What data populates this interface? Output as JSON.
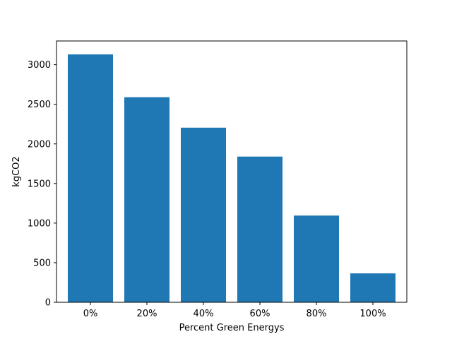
{
  "chart_data": {
    "type": "bar",
    "title": "",
    "xlabel": "Percent Green Energys",
    "ylabel": "kgCO2",
    "categories": [
      "0%",
      "20%",
      "40%",
      "60%",
      "80%",
      "100%"
    ],
    "values": [
      3130,
      2590,
      2205,
      1840,
      1095,
      365
    ],
    "ylim": [
      0,
      3300
    ],
    "yticks": [
      0,
      500,
      1000,
      1500,
      2000,
      2500,
      3000
    ],
    "bar_color": "#1f77b4",
    "grid": false,
    "legend": "none"
  }
}
